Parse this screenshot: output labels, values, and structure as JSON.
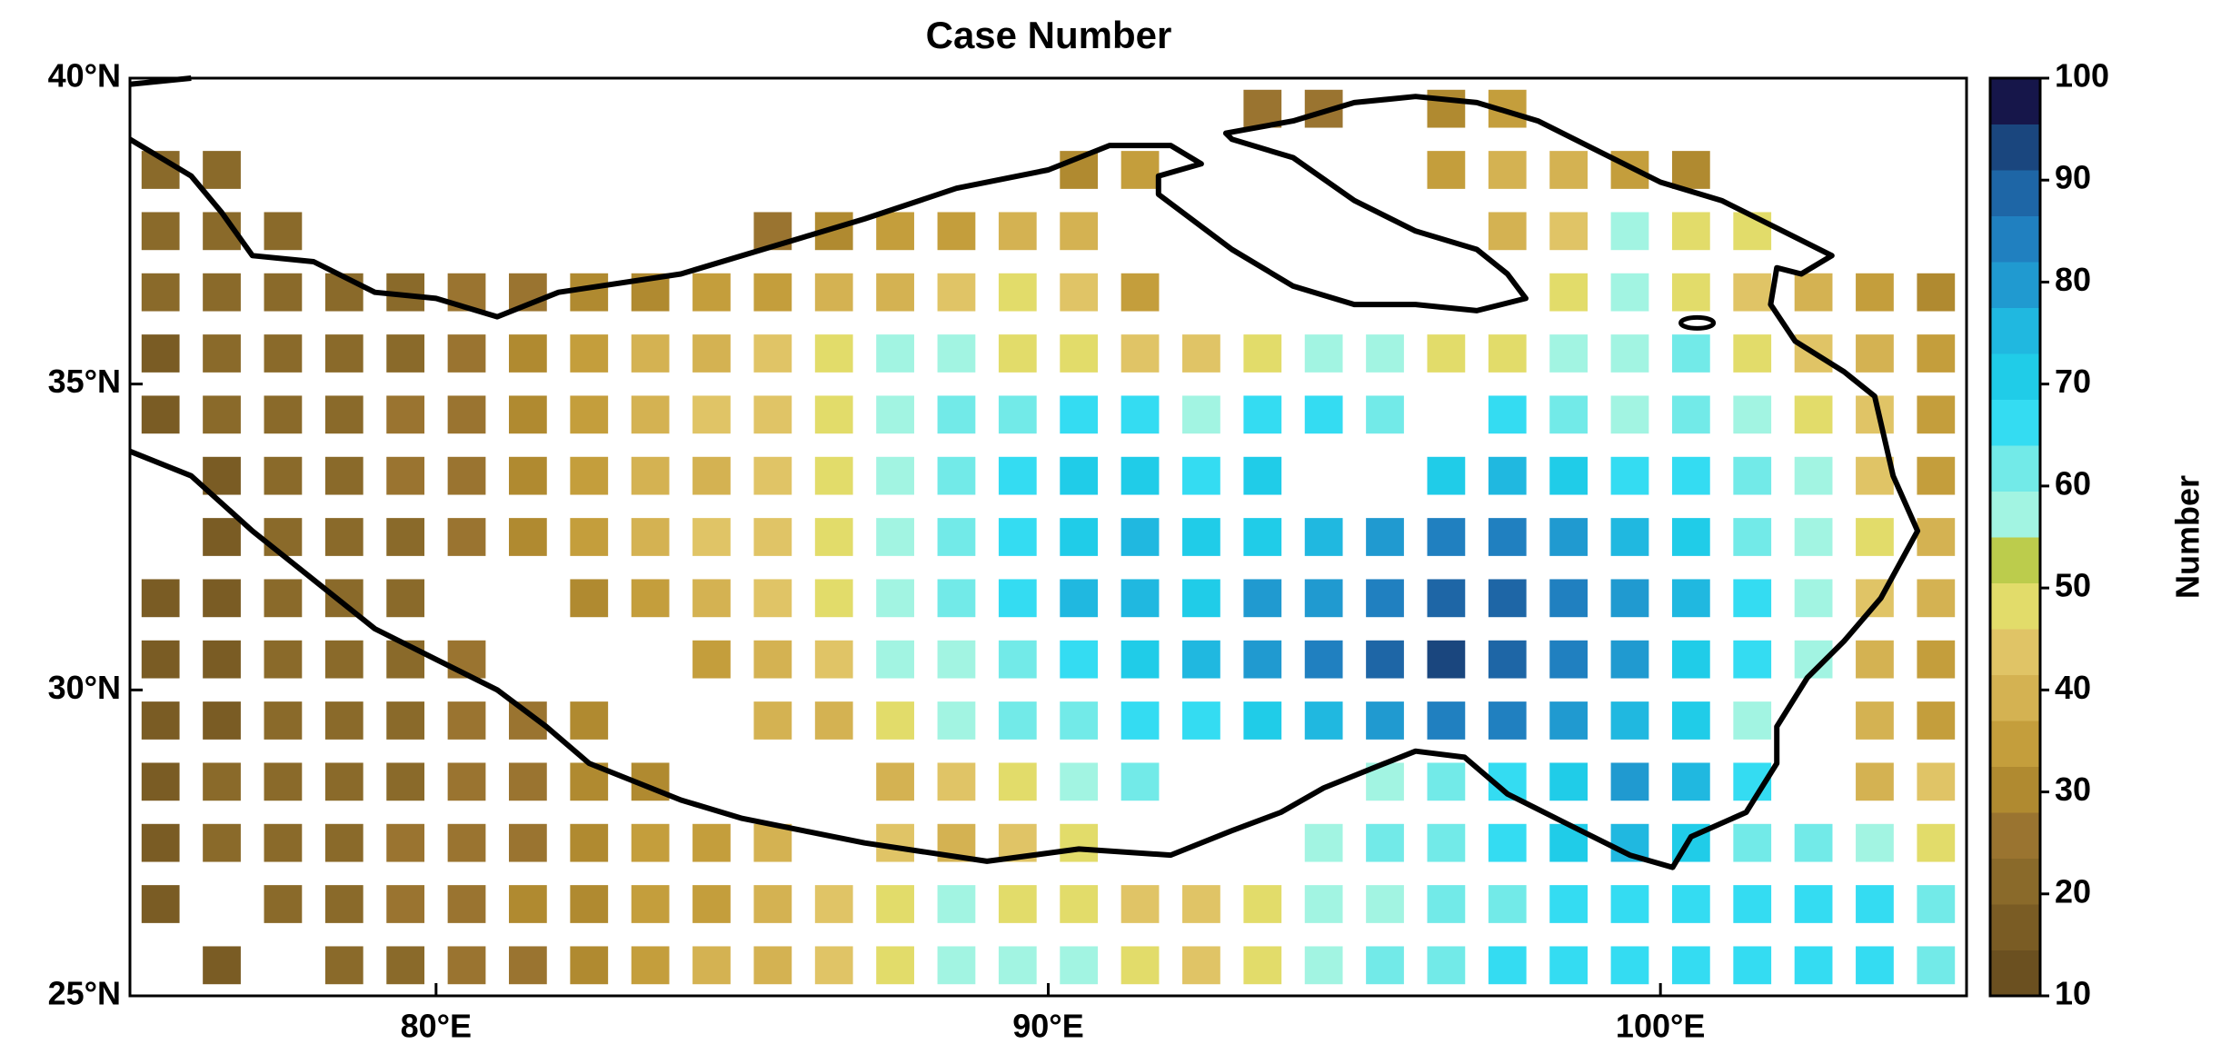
{
  "chart_data": {
    "type": "grid",
    "title": "Case Number",
    "x": [
      75.5,
      76.5,
      77.5,
      78.5,
      79.5,
      80.5,
      81.5,
      82.5,
      83.5,
      84.5,
      85.5,
      86.5,
      87.5,
      88.5,
      89.5,
      90.5,
      91.5,
      92.5,
      93.5,
      94.5,
      95.5,
      96.5,
      97.5,
      98.5,
      99.5,
      100.5,
      101.5,
      102.5,
      103.5,
      104.5
    ],
    "y": [
      39.5,
      38.5,
      37.5,
      36.5,
      35.5,
      34.5,
      33.5,
      32.5,
      31.5,
      30.5,
      29.5,
      28.5,
      27.5,
      26.5,
      25.5
    ],
    "values": [
      [
        null,
        null,
        null,
        null,
        null,
        null,
        null,
        null,
        null,
        null,
        null,
        null,
        null,
        null,
        null,
        null,
        null,
        null,
        25,
        25,
        null,
        30,
        35,
        null,
        null,
        null,
        null,
        null,
        null,
        null
      ],
      [
        20,
        20,
        null,
        null,
        null,
        null,
        null,
        null,
        null,
        null,
        null,
        null,
        null,
        null,
        null,
        30,
        35,
        null,
        null,
        null,
        null,
        35,
        40,
        40,
        35,
        30,
        null,
        null,
        null,
        null
      ],
      [
        20,
        20,
        20,
        null,
        null,
        null,
        null,
        null,
        null,
        null,
        25,
        30,
        35,
        35,
        40,
        40,
        null,
        null,
        null,
        null,
        null,
        null,
        40,
        45,
        55,
        50,
        50,
        null,
        null,
        null
      ],
      [
        20,
        20,
        20,
        20,
        20,
        25,
        25,
        30,
        30,
        35,
        35,
        40,
        40,
        45,
        50,
        45,
        35,
        null,
        null,
        null,
        null,
        null,
        null,
        50,
        55,
        50,
        45,
        40,
        35,
        30
      ],
      [
        15,
        20,
        20,
        20,
        20,
        25,
        30,
        35,
        40,
        40,
        45,
        50,
        55,
        55,
        50,
        50,
        45,
        45,
        50,
        55,
        55,
        50,
        50,
        55,
        55,
        60,
        50,
        45,
        40,
        35
      ],
      [
        15,
        20,
        20,
        20,
        25,
        25,
        30,
        35,
        40,
        45,
        45,
        50,
        55,
        60,
        60,
        65,
        65,
        55,
        65,
        65,
        60,
        null,
        65,
        60,
        55,
        60,
        55,
        50,
        45,
        35
      ],
      [
        null,
        15,
        20,
        20,
        25,
        25,
        30,
        35,
        40,
        40,
        45,
        50,
        55,
        60,
        65,
        70,
        70,
        65,
        70,
        null,
        null,
        70,
        75,
        70,
        65,
        65,
        60,
        55,
        45,
        35
      ],
      [
        null,
        15,
        20,
        20,
        20,
        25,
        30,
        35,
        40,
        45,
        45,
        50,
        55,
        60,
        65,
        70,
        75,
        70,
        70,
        75,
        80,
        85,
        85,
        80,
        75,
        70,
        60,
        55,
        50,
        40
      ],
      [
        15,
        15,
        20,
        20,
        20,
        null,
        null,
        30,
        35,
        40,
        45,
        50,
        55,
        60,
        65,
        75,
        75,
        70,
        80,
        80,
        85,
        90,
        90,
        85,
        80,
        75,
        65,
        55,
        45,
        40
      ],
      [
        15,
        15,
        20,
        20,
        20,
        25,
        null,
        null,
        null,
        35,
        40,
        45,
        55,
        55,
        60,
        65,
        70,
        75,
        80,
        85,
        90,
        95,
        90,
        85,
        80,
        70,
        65,
        55,
        40,
        35
      ],
      [
        15,
        15,
        20,
        20,
        20,
        25,
        25,
        30,
        null,
        null,
        40,
        40,
        50,
        55,
        60,
        60,
        65,
        65,
        70,
        75,
        80,
        85,
        85,
        80,
        75,
        70,
        55,
        null,
        40,
        35
      ],
      [
        15,
        20,
        20,
        20,
        20,
        25,
        25,
        30,
        30,
        null,
        null,
        null,
        40,
        45,
        50,
        55,
        60,
        null,
        null,
        null,
        55,
        60,
        65,
        70,
        80,
        75,
        65,
        null,
        40,
        45
      ],
      [
        15,
        20,
        20,
        20,
        25,
        25,
        25,
        30,
        35,
        35,
        40,
        null,
        45,
        40,
        45,
        50,
        null,
        null,
        null,
        55,
        60,
        60,
        65,
        70,
        75,
        70,
        60,
        60,
        55,
        50
      ],
      [
        15,
        null,
        20,
        20,
        25,
        25,
        30,
        30,
        35,
        35,
        40,
        45,
        50,
        55,
        50,
        50,
        45,
        45,
        50,
        55,
        55,
        60,
        60,
        65,
        65,
        65,
        65,
        65,
        65,
        60
      ],
      [
        null,
        15,
        null,
        20,
        20,
        25,
        25,
        30,
        35,
        40,
        40,
        45,
        50,
        55,
        55,
        55,
        50,
        45,
        50,
        55,
        60,
        60,
        65,
        65,
        65,
        65,
        65,
        65,
        65,
        60
      ]
    ],
    "xlim": [
      75,
      105
    ],
    "ylim": [
      25,
      40
    ],
    "xticks": [
      {
        "value": 80,
        "label": "80°E"
      },
      {
        "value": 90,
        "label": "90°E"
      },
      {
        "value": 100,
        "label": "100°E"
      }
    ],
    "yticks": [
      {
        "value": 25,
        "label": "25°N"
      },
      {
        "value": 30,
        "label": "30°N"
      },
      {
        "value": 35,
        "label": "35°N"
      },
      {
        "value": 40,
        "label": "40°N"
      }
    ],
    "colorbar": {
      "label": "Number",
      "lim": [
        10,
        100
      ],
      "ticks": [
        10,
        20,
        30,
        40,
        50,
        60,
        70,
        80,
        90,
        100
      ],
      "colors": [
        "#6b5020",
        "#7a5c24",
        "#8a6a2a",
        "#9a7430",
        "#b08a30",
        "#c49e3c",
        "#d4b252",
        "#e0c466",
        "#e2dc6a",
        "#bccc4c",
        "#a2f4e2",
        "#72eae8",
        "#34dcf2",
        "#20cce8",
        "#20b8e0",
        "#209ad0",
        "#2080c0",
        "#1e66a6",
        "#1a467e",
        "#16164a"
      ]
    }
  }
}
